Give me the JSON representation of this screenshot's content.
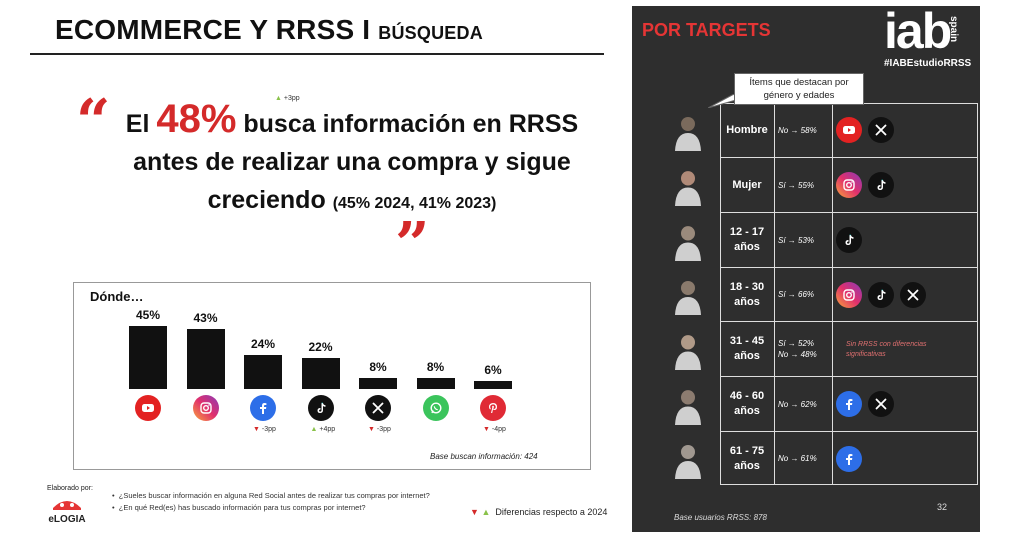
{
  "header": {
    "title": "ECOMMERCE Y RRSS I",
    "subtitle": "BÚSQUEDA"
  },
  "headline": {
    "part1": "El",
    "pct": "48%",
    "part2": "busca información en RRSS antes de realizar una compra y sigue creciendo",
    "small": "(45% 2024, 41% 2023)",
    "delta": "+3pp",
    "quote_open": "“",
    "quote_close": "”"
  },
  "chart_data": {
    "type": "bar",
    "title": "Dónde…",
    "categories": [
      "YouTube",
      "Instagram",
      "Facebook",
      "TikTok",
      "X",
      "WhatsApp",
      "Pinterest"
    ],
    "values": [
      45,
      43,
      24,
      22,
      8,
      8,
      6
    ],
    "labels": [
      "45%",
      "43%",
      "24%",
      "22%",
      "8%",
      "8%",
      "6%"
    ],
    "deltas": [
      "",
      "",
      "-3pp",
      "+4pp",
      "-3pp",
      "",
      "-4pp"
    ],
    "delta_dir": [
      "",
      "",
      "down",
      "up",
      "down",
      "",
      "down"
    ],
    "icons": [
      "youtube-icon",
      "instagram-icon",
      "facebook-icon",
      "tiktok-icon",
      "x-icon",
      "whatsapp-icon",
      "pinterest-icon"
    ],
    "ylim": [
      0,
      45
    ],
    "base_note": "Base buscan información: 424"
  },
  "footer": {
    "elaborado": "Elaborado por:",
    "brand": "eLOGIA",
    "q1": "¿Sueles buscar información en alguna Red Social antes de realizar tus compras por internet?",
    "q2": "¿En qué Red(es) has buscado información para tus compras por internet?",
    "legend": "Diferencias respecto a 2024"
  },
  "panel": {
    "title": "POR TARGETS",
    "logo": "iab",
    "logo_sub": "spain",
    "hashtag": "#IABEstudioRRSS",
    "callout": "Ítems que destacan por género y edades",
    "base": "Base usuarios RRSS: 878",
    "page": "32",
    "rows": [
      {
        "label": "Hombre",
        "lines": [
          "No → 58%"
        ],
        "icons": [
          "youtube-icon",
          "x-icon"
        ]
      },
      {
        "label": "Mujer",
        "lines": [
          "Sí → 55%"
        ],
        "icons": [
          "instagram-icon",
          "tiktok-icon"
        ]
      },
      {
        "label": "12 - 17 años",
        "lines": [
          "Sí → 53%"
        ],
        "icons": [
          "tiktok-icon"
        ]
      },
      {
        "label": "18 - 30 años",
        "lines": [
          "Sí → 66%"
        ],
        "icons": [
          "instagram-icon",
          "tiktok-icon",
          "x-icon"
        ]
      },
      {
        "label": "31 - 45 años",
        "lines": [
          "Sí → 52%",
          "No → 48%"
        ],
        "icons": [],
        "note": "Sin RRSS con diferencias significativas"
      },
      {
        "label": "46 - 60 años",
        "lines": [
          "No → 62%"
        ],
        "icons": [
          "facebook-icon",
          "x-icon"
        ]
      },
      {
        "label": "61 - 75 años",
        "lines": [
          "No → 61%"
        ],
        "icons": [
          "facebook-icon"
        ]
      }
    ]
  }
}
